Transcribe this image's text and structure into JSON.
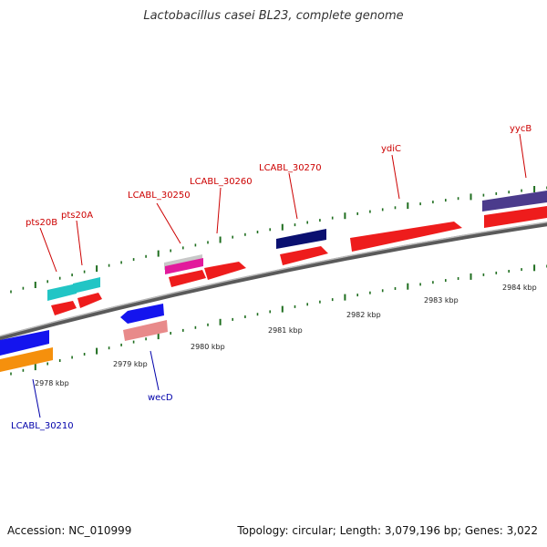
{
  "title": "Lactobacillus casei BL23, complete genome",
  "footer": {
    "accession": "Accession: NC_010999",
    "summary": "Topology: circular; Length: 3,079,196 bp; Genes: 3,022"
  },
  "colors": {
    "backbone": "#7a7a7a",
    "tick": "#1f6e1f",
    "label_forward": "#cc0000",
    "label_reverse": "#0000aa"
  },
  "kbp_ticks": [
    "2978 kbp",
    "2979 kbp",
    "2980 kbp",
    "2981 kbp",
    "2982 kbp",
    "2983 kbp",
    "2984 kbp"
  ],
  "gene_labels": [
    {
      "name": "pts20B",
      "strand": "forward"
    },
    {
      "name": "pts20A",
      "strand": "forward"
    },
    {
      "name": "LCABL_30250",
      "strand": "forward"
    },
    {
      "name": "LCABL_30260",
      "strand": "forward"
    },
    {
      "name": "LCABL_30270",
      "strand": "forward"
    },
    {
      "name": "ydiC",
      "strand": "forward"
    },
    {
      "name": "yycB",
      "strand": "forward"
    },
    {
      "name": "wecD",
      "strand": "reverse"
    },
    {
      "name": "LCABL_30210",
      "strand": "reverse"
    }
  ]
}
